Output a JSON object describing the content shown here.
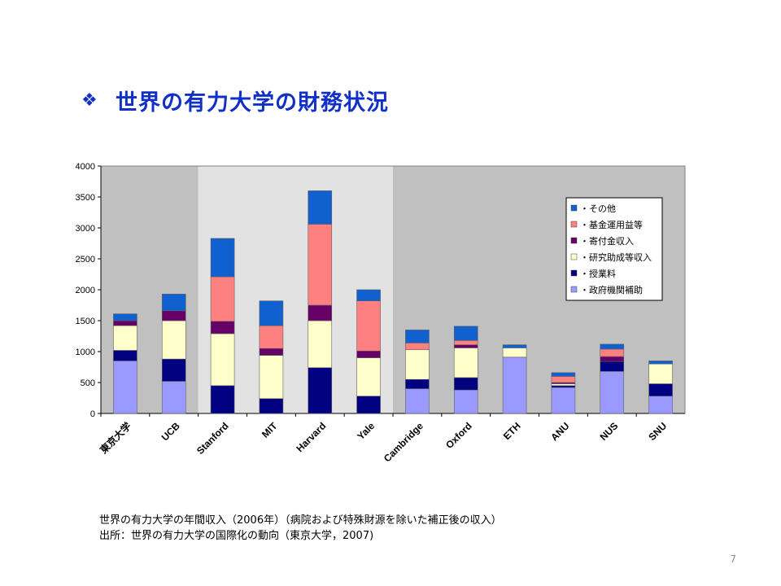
{
  "slide": {
    "bullet": "❖",
    "title": "世界の有力大学の財務状況",
    "caption1": "世界の有力大学の年間収入（2006年）（病院および特殊財源を除いた補正後の収入）",
    "caption2": "出所：世界の有力大学の国際化の動向（東京大学，2007)",
    "page_number": "7"
  },
  "chart_data": {
    "type": "bar",
    "stacked": true,
    "categories": [
      "東京大学",
      "UCB",
      "Stanford",
      "MIT",
      "Harvard",
      "Yale",
      "Cambridge",
      "Oxford",
      "ETH",
      "ANU",
      "NUS",
      "SNU"
    ],
    "ylim": [
      0,
      4000
    ],
    "yticks": [
      0,
      500,
      1000,
      1500,
      2000,
      2500,
      3000,
      3500,
      4000
    ],
    "grid": false,
    "legend_position": "top-right",
    "background_bands": [
      {
        "from": 0,
        "to": 2,
        "color": "#c0c0c0"
      },
      {
        "from": 2,
        "to": 6,
        "color": "#e2e2e2"
      },
      {
        "from": 6,
        "to": 12,
        "color": "#c0c0c0"
      }
    ],
    "series": [
      {
        "name": "・政府機関補助",
        "color": "#9999ff",
        "values": [
          850,
          520,
          0,
          0,
          0,
          0,
          400,
          380,
          910,
          420,
          680,
          280
        ]
      },
      {
        "name": "・授業料",
        "color": "#000080",
        "values": [
          170,
          360,
          450,
          240,
          740,
          280,
          150,
          200,
          0,
          30,
          160,
          200
        ]
      },
      {
        "name": "・研究助成等収入",
        "color": "#ffffcc",
        "values": [
          400,
          620,
          840,
          700,
          760,
          620,
          480,
          480,
          150,
          30,
          0,
          320
        ]
      },
      {
        "name": "・寄付金収入",
        "color": "#660066",
        "values": [
          80,
          160,
          200,
          110,
          250,
          110,
          0,
          50,
          0,
          20,
          80,
          0
        ]
      },
      {
        "name": "・基金運用益等",
        "color": "#ff8080",
        "values": [
          0,
          0,
          720,
          370,
          1310,
          810,
          110,
          70,
          0,
          100,
          120,
          0
        ]
      },
      {
        "name": "・その他",
        "color": "#1060d0",
        "values": [
          110,
          270,
          620,
          400,
          540,
          180,
          210,
          230,
          50,
          60,
          80,
          50
        ]
      }
    ]
  }
}
